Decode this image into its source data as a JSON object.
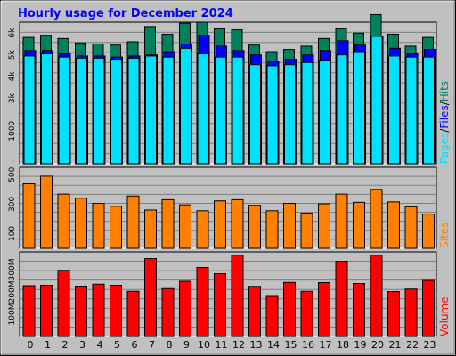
{
  "chart_data": [
    {
      "type": "bar",
      "title": "Hourly usage for December 2024",
      "categories": [
        "0",
        "1",
        "2",
        "3",
        "4",
        "5",
        "6",
        "7",
        "8",
        "9",
        "10",
        "11",
        "12",
        "13",
        "14",
        "15",
        "16",
        "17",
        "18",
        "19",
        "20",
        "21",
        "22",
        "23"
      ],
      "series": [
        {
          "name": "Hits",
          "color": "#00805c",
          "values": [
            5800,
            5900,
            5750,
            5550,
            5500,
            5450,
            5600,
            6300,
            5950,
            6450,
            6500,
            6200,
            6150,
            5450,
            5150,
            5250,
            5400,
            5750,
            6200,
            6000,
            6850,
            5950,
            5400,
            5800
          ]
        },
        {
          "name": "Files",
          "color": "#0000ff",
          "values": [
            5200,
            5200,
            5050,
            4950,
            4950,
            4900,
            4950,
            5000,
            5150,
            5500,
            5900,
            5400,
            5200,
            5000,
            4700,
            4800,
            5000,
            5200,
            5650,
            5450,
            5850,
            5300,
            5050,
            5250
          ]
        },
        {
          "name": "Pages",
          "color": "#00e0ff",
          "values": [
            4950,
            5050,
            4900,
            4850,
            4850,
            4800,
            4850,
            4950,
            4900,
            5300,
            5050,
            4900,
            4900,
            4550,
            4500,
            4550,
            4650,
            4750,
            5000,
            5150,
            5850,
            4950,
            4900,
            4900
          ]
        }
      ],
      "ylabels": [
        "1000",
        "3k",
        "4k",
        "5k",
        "6k"
      ],
      "legend": [
        "Pages",
        "/",
        "Files",
        "/",
        "Hits"
      ]
    },
    {
      "type": "bar",
      "categories": [
        "0",
        "1",
        "2",
        "3",
        "4",
        "5",
        "6",
        "7",
        "8",
        "9",
        "10",
        "11",
        "12",
        "13",
        "14",
        "15",
        "16",
        "17",
        "18",
        "19",
        "20",
        "21",
        "22",
        "23"
      ],
      "series": [
        {
          "name": "Sites",
          "color": "#ff8000",
          "values": [
            438,
            490,
            368,
            340,
            305,
            285,
            355,
            260,
            330,
            295,
            255,
            322,
            330,
            292,
            255,
            305,
            238,
            302,
            368,
            312,
            400,
            315,
            282,
            232
          ]
        }
      ],
      "ylabels": [
        "100",
        "300",
        "500"
      ],
      "legend": [
        "Sites"
      ]
    },
    {
      "type": "bar",
      "categories": [
        "0",
        "1",
        "2",
        "3",
        "4",
        "5",
        "6",
        "7",
        "8",
        "9",
        "10",
        "11",
        "12",
        "13",
        "14",
        "15",
        "16",
        "17",
        "18",
        "19",
        "20",
        "21",
        "22",
        "23"
      ],
      "series": [
        {
          "name": "Volume",
          "color": "#ff0000",
          "values": [
            228,
            230,
            297,
            226,
            235,
            230,
            203,
            350,
            215,
            248,
            310,
            282,
            365,
            225,
            180,
            243,
            203,
            242,
            338,
            238,
            365,
            202,
            213,
            252
          ]
        }
      ],
      "ylabels": [
        "100M",
        "200M",
        "300M"
      ],
      "legend": [
        "Volume"
      ]
    }
  ]
}
